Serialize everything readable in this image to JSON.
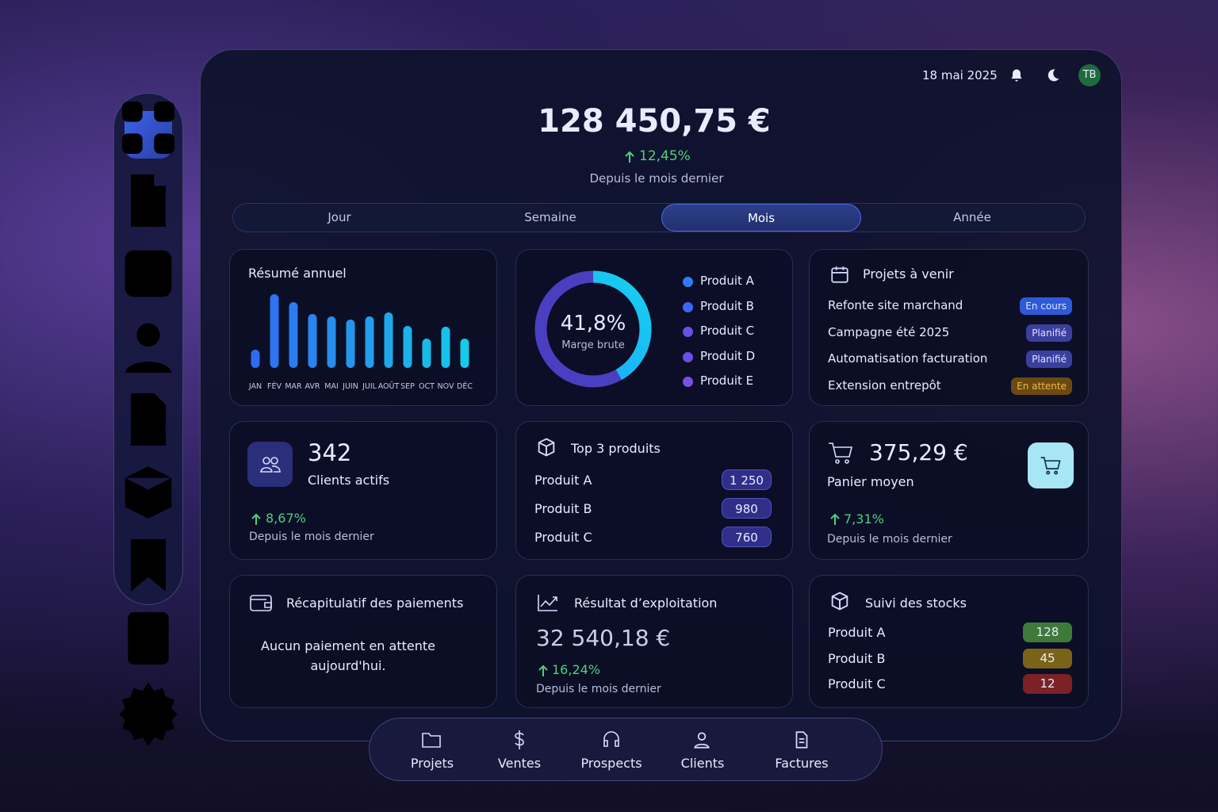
{
  "header": {
    "date": "18 mai 2025",
    "avatar": "TB"
  },
  "hero": {
    "amount": "128 450,75 €",
    "change": "12,45%",
    "caption": "Depuis le mois dernier"
  },
  "tabs": [
    {
      "label": "Jour"
    },
    {
      "label": "Semaine"
    },
    {
      "label": "Mois",
      "active": true
    },
    {
      "label": "Année"
    }
  ],
  "chart_data": [
    {
      "type": "bar",
      "title": "Résumé annuel",
      "categories": [
        "JAN",
        "FÉV",
        "MAR",
        "AVR",
        "MAI",
        "JUIN",
        "JUIL",
        "AOÛT",
        "SEP",
        "OCT",
        "NOV",
        "DÉC"
      ],
      "values": [
        23,
        93,
        83,
        68,
        65,
        61,
        65,
        70,
        53,
        37,
        52,
        37
      ]
    },
    {
      "type": "donut",
      "value": 41.8,
      "value_label": "41,8%",
      "label": "Marge brute",
      "legend": [
        {
          "name": "Produit A",
          "color": "#2f7bff"
        },
        {
          "name": "Produit B",
          "color": "#3a68f5"
        },
        {
          "name": "Produit C",
          "color": "#6a4ee8"
        },
        {
          "name": "Produit D",
          "color": "#6a4ee8"
        },
        {
          "name": "Produit E",
          "color": "#7b4fe6"
        }
      ]
    }
  ],
  "projects": {
    "title": "Projets à venir",
    "rows": [
      {
        "name": "Refonte site marchand",
        "status": "En cours",
        "color": "#2e59d9"
      },
      {
        "name": "Campagne été 2025",
        "status": "Planifié",
        "color": "#3b3f9e"
      },
      {
        "name": "Automatisation facturation",
        "status": "Planifié",
        "color": "#3b3f9e"
      },
      {
        "name": "Extension entrepôt",
        "status": "En attente",
        "color": "#6b4a12"
      }
    ]
  },
  "clients": {
    "value": "342",
    "label": "Clients actifs",
    "change": "8,67%",
    "caption": "Depuis le mois dernier"
  },
  "top_products": {
    "title": "Top 3 produits",
    "rows": [
      {
        "name": "Produit A",
        "value": "1 250"
      },
      {
        "name": "Produit B",
        "value": "980"
      },
      {
        "name": "Produit C",
        "value": "760"
      }
    ]
  },
  "basket": {
    "value": "375,29 €",
    "label": "Panier moyen",
    "change": "7,31%",
    "caption": "Depuis le mois dernier"
  },
  "payments": {
    "title": "Récapitulatif des paiements",
    "message": "Aucun paiement en attente aujourd'hui."
  },
  "operating": {
    "title": "Résultat d’exploitation",
    "value": "32 540,18 €",
    "change": "16,24%",
    "caption": "Depuis le mois dernier"
  },
  "stock": {
    "title": "Suivi des stocks",
    "rows": [
      {
        "name": "Produit A",
        "value": "128",
        "color": "#3d7a3a"
      },
      {
        "name": "Produit B",
        "value": "45",
        "color": "#7a6318"
      },
      {
        "name": "Produit C",
        "value": "12",
        "color": "#7a2226"
      }
    ]
  },
  "nav": [
    "Projets",
    "Ventes",
    "Prospects",
    "Clients",
    "Factures"
  ]
}
